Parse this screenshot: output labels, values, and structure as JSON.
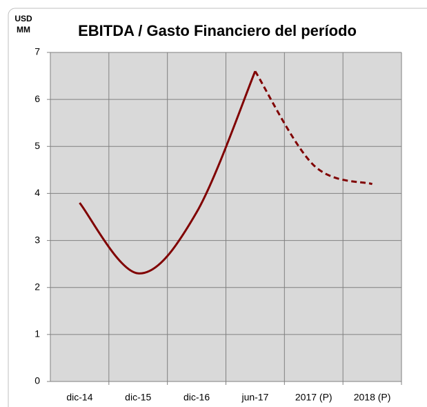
{
  "chart_data": {
    "type": "line",
    "title": "EBITDA / Gasto Financiero del período",
    "y_label": "USD MM",
    "categories": [
      "dic-14",
      "dic-15",
      "dic-16",
      "jun-17",
      "2017 (P)",
      "2018 (P)"
    ],
    "series": [
      {
        "color": "#800000",
        "dashed": false,
        "values": [
          3.8,
          2.3,
          3.6,
          6.6,
          null,
          null
        ]
      },
      {
        "color": "#800000",
        "dashed": true,
        "values": [
          null,
          null,
          null,
          6.6,
          4.6,
          4.2
        ]
      }
    ],
    "ylim": [
      0,
      7
    ],
    "yticks": [
      0,
      1,
      2,
      3,
      4,
      5,
      6,
      7
    ],
    "grid": true
  }
}
